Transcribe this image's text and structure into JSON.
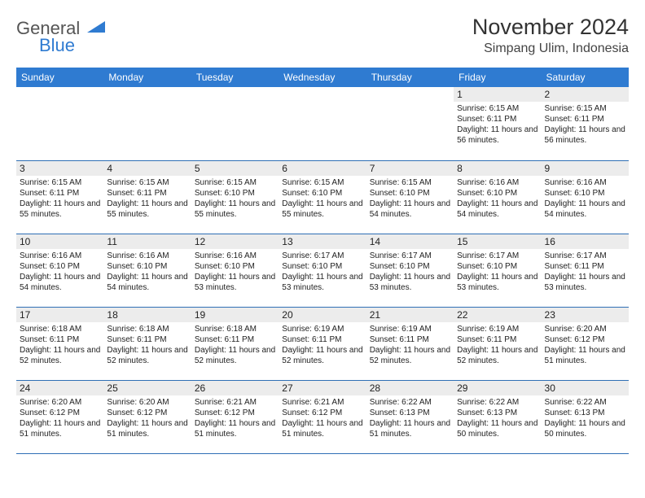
{
  "brand": {
    "name1": "General",
    "name2": "Blue",
    "brand_color": "#2f7bd1"
  },
  "title": "November 2024",
  "location": "Simpang Ulim, Indonesia",
  "columns": [
    "Sunday",
    "Monday",
    "Tuesday",
    "Wednesday",
    "Thursday",
    "Friday",
    "Saturday"
  ],
  "layout": {
    "first_weekday_index": 5,
    "days_in_month": 30,
    "weeks": 5,
    "col_count": 7
  },
  "style": {
    "header_bg": "#2f7bd1",
    "header_text_color": "#ffffff",
    "daynum_bg": "#ececec",
    "border_color": "#2f6fb5",
    "background": "#ffffff",
    "body_font_size": 10,
    "header_font_size": 12,
    "title_font_size": 27,
    "location_font_size": 16
  },
  "days": {
    "1": {
      "sunrise": "6:15 AM",
      "sunset": "6:11 PM",
      "daylight": "11 hours and 56 minutes."
    },
    "2": {
      "sunrise": "6:15 AM",
      "sunset": "6:11 PM",
      "daylight": "11 hours and 56 minutes."
    },
    "3": {
      "sunrise": "6:15 AM",
      "sunset": "6:11 PM",
      "daylight": "11 hours and 55 minutes."
    },
    "4": {
      "sunrise": "6:15 AM",
      "sunset": "6:11 PM",
      "daylight": "11 hours and 55 minutes."
    },
    "5": {
      "sunrise": "6:15 AM",
      "sunset": "6:10 PM",
      "daylight": "11 hours and 55 minutes."
    },
    "6": {
      "sunrise": "6:15 AM",
      "sunset": "6:10 PM",
      "daylight": "11 hours and 55 minutes."
    },
    "7": {
      "sunrise": "6:15 AM",
      "sunset": "6:10 PM",
      "daylight": "11 hours and 54 minutes."
    },
    "8": {
      "sunrise": "6:16 AM",
      "sunset": "6:10 PM",
      "daylight": "11 hours and 54 minutes."
    },
    "9": {
      "sunrise": "6:16 AM",
      "sunset": "6:10 PM",
      "daylight": "11 hours and 54 minutes."
    },
    "10": {
      "sunrise": "6:16 AM",
      "sunset": "6:10 PM",
      "daylight": "11 hours and 54 minutes."
    },
    "11": {
      "sunrise": "6:16 AM",
      "sunset": "6:10 PM",
      "daylight": "11 hours and 54 minutes."
    },
    "12": {
      "sunrise": "6:16 AM",
      "sunset": "6:10 PM",
      "daylight": "11 hours and 53 minutes."
    },
    "13": {
      "sunrise": "6:17 AM",
      "sunset": "6:10 PM",
      "daylight": "11 hours and 53 minutes."
    },
    "14": {
      "sunrise": "6:17 AM",
      "sunset": "6:10 PM",
      "daylight": "11 hours and 53 minutes."
    },
    "15": {
      "sunrise": "6:17 AM",
      "sunset": "6:10 PM",
      "daylight": "11 hours and 53 minutes."
    },
    "16": {
      "sunrise": "6:17 AM",
      "sunset": "6:11 PM",
      "daylight": "11 hours and 53 minutes."
    },
    "17": {
      "sunrise": "6:18 AM",
      "sunset": "6:11 PM",
      "daylight": "11 hours and 52 minutes."
    },
    "18": {
      "sunrise": "6:18 AM",
      "sunset": "6:11 PM",
      "daylight": "11 hours and 52 minutes."
    },
    "19": {
      "sunrise": "6:18 AM",
      "sunset": "6:11 PM",
      "daylight": "11 hours and 52 minutes."
    },
    "20": {
      "sunrise": "6:19 AM",
      "sunset": "6:11 PM",
      "daylight": "11 hours and 52 minutes."
    },
    "21": {
      "sunrise": "6:19 AM",
      "sunset": "6:11 PM",
      "daylight": "11 hours and 52 minutes."
    },
    "22": {
      "sunrise": "6:19 AM",
      "sunset": "6:11 PM",
      "daylight": "11 hours and 52 minutes."
    },
    "23": {
      "sunrise": "6:20 AM",
      "sunset": "6:12 PM",
      "daylight": "11 hours and 51 minutes."
    },
    "24": {
      "sunrise": "6:20 AM",
      "sunset": "6:12 PM",
      "daylight": "11 hours and 51 minutes."
    },
    "25": {
      "sunrise": "6:20 AM",
      "sunset": "6:12 PM",
      "daylight": "11 hours and 51 minutes."
    },
    "26": {
      "sunrise": "6:21 AM",
      "sunset": "6:12 PM",
      "daylight": "11 hours and 51 minutes."
    },
    "27": {
      "sunrise": "6:21 AM",
      "sunset": "6:12 PM",
      "daylight": "11 hours and 51 minutes."
    },
    "28": {
      "sunrise": "6:22 AM",
      "sunset": "6:13 PM",
      "daylight": "11 hours and 51 minutes."
    },
    "29": {
      "sunrise": "6:22 AM",
      "sunset": "6:13 PM",
      "daylight": "11 hours and 50 minutes."
    },
    "30": {
      "sunrise": "6:22 AM",
      "sunset": "6:13 PM",
      "daylight": "11 hours and 50 minutes."
    }
  },
  "labels": {
    "sunrise": "Sunrise:",
    "sunset": "Sunset:",
    "daylight": "Daylight:"
  }
}
